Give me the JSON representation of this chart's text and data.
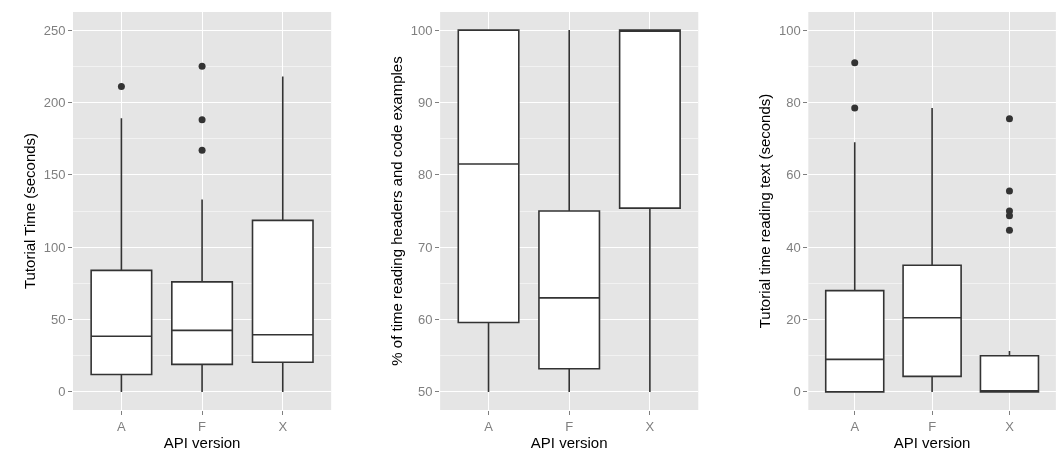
{
  "chart_data": [
    {
      "type": "box",
      "xlabel": "API version",
      "ylabel": "Tutorial Time (seconds)",
      "categories": [
        "A",
        "F",
        "X"
      ],
      "ylim": [
        -12.5,
        262.5
      ],
      "yticks": [
        0,
        50,
        100,
        150,
        200,
        250
      ],
      "grid": true,
      "boxes": [
        {
          "low": 0,
          "q1": 12,
          "median": 38.5,
          "q3": 84,
          "high": 189,
          "outliers": [
            211
          ]
        },
        {
          "low": 0,
          "q1": 19,
          "median": 42.5,
          "q3": 76,
          "high": 133,
          "outliers": [
            225,
            188,
            167
          ]
        },
        {
          "low": 0,
          "q1": 20.5,
          "median": 39.5,
          "q3": 118.5,
          "high": 218
        }
      ]
    },
    {
      "type": "box",
      "xlabel": "API version",
      "ylabel": "% of time reading headers and code examples",
      "categories": [
        "A",
        "F",
        "X"
      ],
      "ylim": [
        47.5,
        102.5
      ],
      "yticks": [
        50,
        60,
        70,
        80,
        90,
        100
      ],
      "grid": true,
      "boxes": [
        {
          "low": 50,
          "q1": 59.6,
          "median": 81.5,
          "q3": 100,
          "high": 100
        },
        {
          "low": 50,
          "q1": 53.2,
          "median": 63,
          "q3": 75,
          "high": 100
        },
        {
          "low": 50,
          "q1": 75.4,
          "median": 100,
          "q3": 100,
          "high": 100
        }
      ]
    },
    {
      "type": "box",
      "xlabel": "API version",
      "ylabel": "Tutorial time reading text (seconds)",
      "categories": [
        "A",
        "F",
        "X"
      ],
      "ylim": [
        -5,
        105
      ],
      "yticks": [
        0,
        20,
        40,
        60,
        80,
        100
      ],
      "grid": true,
      "boxes": [
        {
          "low": 0,
          "q1": 0,
          "median": 9,
          "q3": 28,
          "high": 69,
          "outliers": [
            91,
            78.5
          ]
        },
        {
          "low": 0,
          "q1": 4.3,
          "median": 20.5,
          "q3": 35,
          "high": 78.5
        },
        {
          "low": 0,
          "q1": 0,
          "median": 0,
          "q3": 10,
          "high": 11.3,
          "outliers": [
            75.5,
            55.5,
            50,
            48.7,
            44.7
          ]
        }
      ]
    }
  ]
}
